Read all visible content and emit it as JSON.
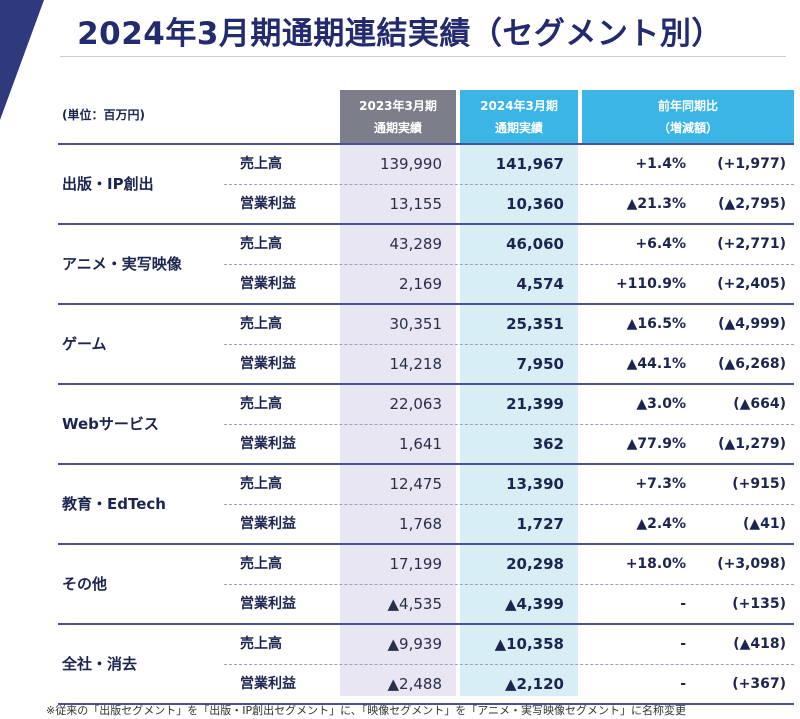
{
  "title": "2024年3月期通期連結実績（セグメント別）",
  "unit": "(単位：百万円)",
  "headers": {
    "fy2023_line1": "2023年3月期",
    "fy2023_line2": "通期実績",
    "fy2024_line1": "2024年3月期",
    "fy2024_line2": "通期実績",
    "yoy_line1": "前年同期比",
    "yoy_line2": "（増減額）"
  },
  "segments": [
    {
      "name": "出版・IP創出",
      "rows": [
        {
          "metric": "売上高",
          "fy2023": "139,990",
          "fy2024": "141,967",
          "pct": "+1.4%",
          "diff": "(+1,977)"
        },
        {
          "metric": "営業利益",
          "fy2023": "13,155",
          "fy2024": "10,360",
          "pct": "▲21.3%",
          "diff": "(▲2,795)"
        }
      ]
    },
    {
      "name": "アニメ・実写映像",
      "rows": [
        {
          "metric": "売上高",
          "fy2023": "43,289",
          "fy2024": "46,060",
          "pct": "+6.4%",
          "diff": "(+2,771)"
        },
        {
          "metric": "営業利益",
          "fy2023": "2,169",
          "fy2024": "4,574",
          "pct": "+110.9%",
          "diff": "(+2,405)"
        }
      ]
    },
    {
      "name": "ゲーム",
      "rows": [
        {
          "metric": "売上高",
          "fy2023": "30,351",
          "fy2024": "25,351",
          "pct": "▲16.5%",
          "diff": "(▲4,999)"
        },
        {
          "metric": "営業利益",
          "fy2023": "14,218",
          "fy2024": "7,950",
          "pct": "▲44.1%",
          "diff": "(▲6,268)"
        }
      ]
    },
    {
      "name": "Webサービス",
      "rows": [
        {
          "metric": "売上高",
          "fy2023": "22,063",
          "fy2024": "21,399",
          "pct": "▲3.0%",
          "diff": "(▲664)"
        },
        {
          "metric": "営業利益",
          "fy2023": "1,641",
          "fy2024": "362",
          "pct": "▲77.9%",
          "diff": "(▲1,279)"
        }
      ]
    },
    {
      "name": "教育・EdTech",
      "rows": [
        {
          "metric": "売上高",
          "fy2023": "12,475",
          "fy2024": "13,390",
          "pct": "+7.3%",
          "diff": "(+915)"
        },
        {
          "metric": "営業利益",
          "fy2023": "1,768",
          "fy2024": "1,727",
          "pct": "▲2.4%",
          "diff": "(▲41)"
        }
      ]
    },
    {
      "name": "その他",
      "rows": [
        {
          "metric": "売上高",
          "fy2023": "17,199",
          "fy2024": "20,298",
          "pct": "+18.0%",
          "diff": "(+3,098)"
        },
        {
          "metric": "営業利益",
          "fy2023": "▲4,535",
          "fy2024": "▲4,399",
          "pct": "-",
          "diff": "(+135)"
        }
      ]
    },
    {
      "name": "全社・消去",
      "rows": [
        {
          "metric": "売上高",
          "fy2023": "▲9,939",
          "fy2024": "▲10,358",
          "pct": "-",
          "diff": "(▲418)"
        },
        {
          "metric": "営業利益",
          "fy2023": "▲2,488",
          "fy2024": "▲2,120",
          "pct": "-",
          "diff": "(+367)"
        }
      ]
    }
  ],
  "note": "※従来の「出版セグメント」を「出版・IP創出セグメント」に、「映像セグメント」を「アニメ・実写映像セグメント」に名称変更",
  "colors": {
    "title": "#232a6e",
    "header_prev": "#7c7f8a",
    "header_current": "#3bb4e6",
    "column_prev_bg": "#e8e6f2",
    "column_current_bg": "#d7eef5",
    "corner_accent": "#2f3a7e"
  }
}
